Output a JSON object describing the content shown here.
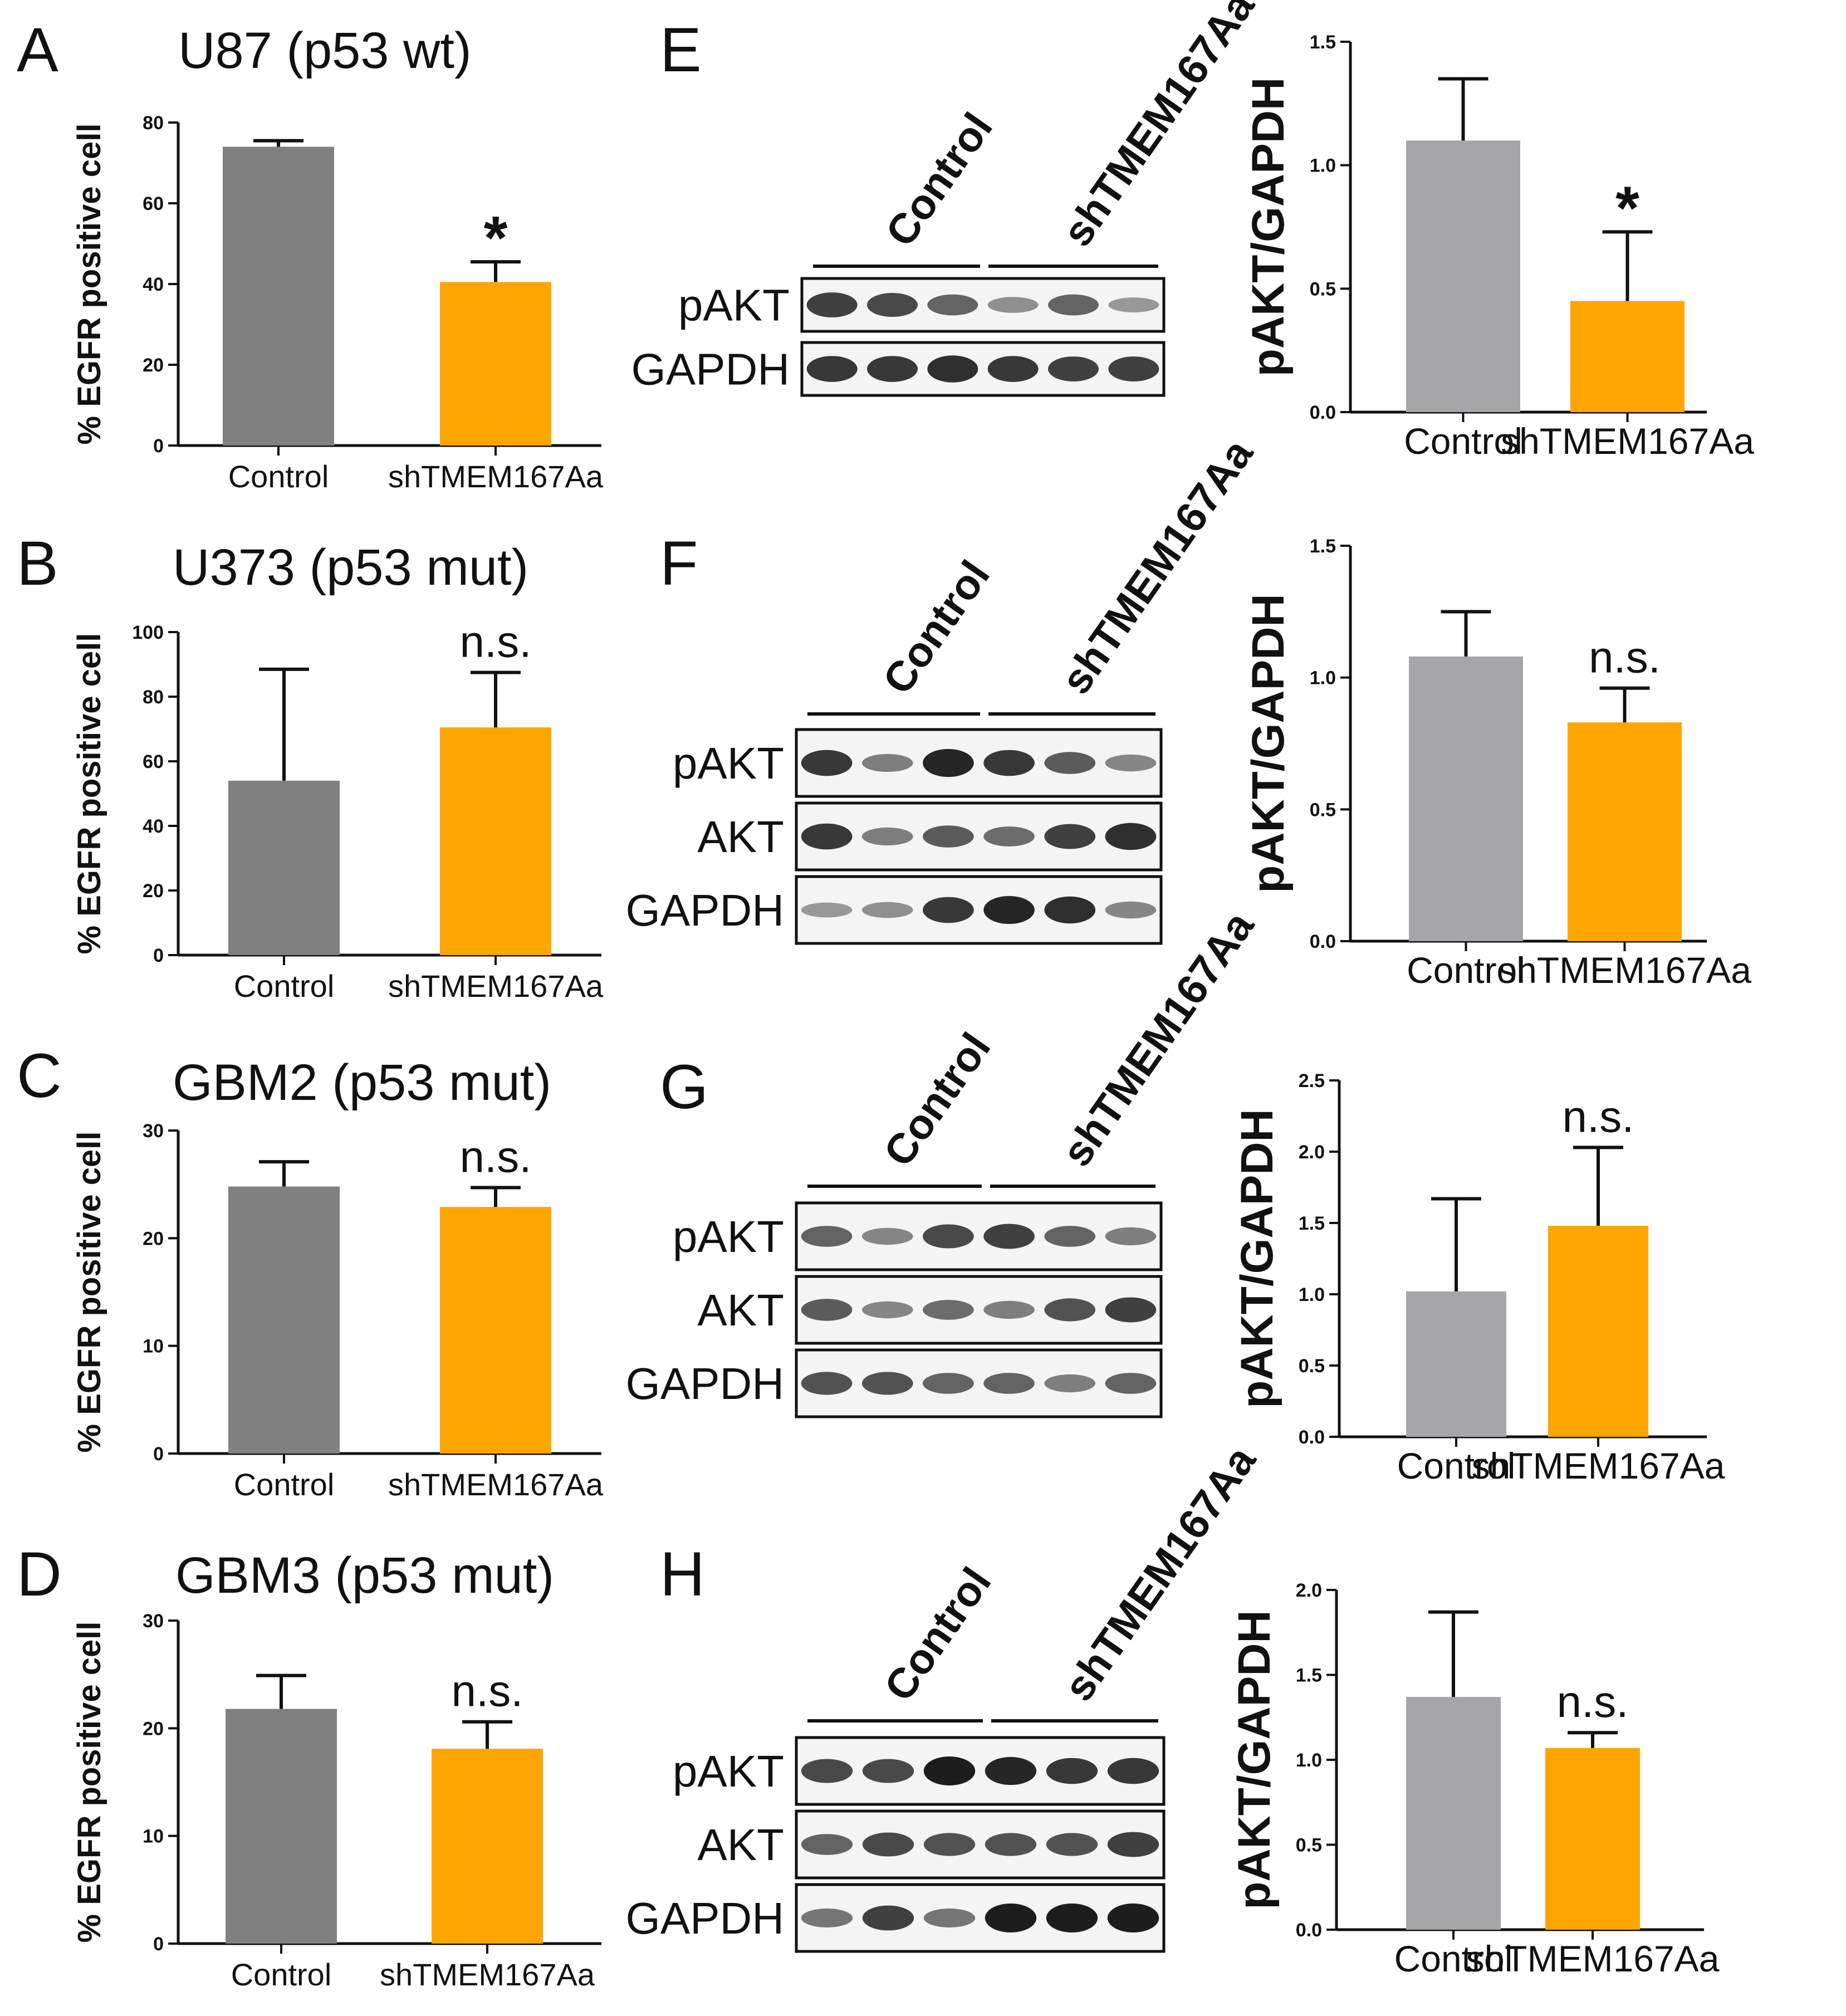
{
  "colors": {
    "control": "#808080",
    "control_light": "#a6a6aa",
    "sh": "#ffa500",
    "axis": "#111111"
  },
  "chart_data": [
    {
      "id": "A",
      "type": "bar",
      "title": "U87 (p53 wt)",
      "ylabel": "% EGFR positive cell",
      "categories": [
        "Control",
        "shTMEM167Aa"
      ],
      "values": [
        74,
        40.5
      ],
      "errors": [
        1.5,
        5
      ],
      "ylim": [
        0,
        80
      ],
      "yticks": [
        0,
        20,
        40,
        60,
        80
      ],
      "significance": "*"
    },
    {
      "id": "B",
      "type": "bar",
      "title": "U373 (p53 mut)",
      "ylabel": "% EGFR positive cell",
      "categories": [
        "Control",
        "shTMEM167Aa"
      ],
      "values": [
        54,
        70.5
      ],
      "errors": [
        34.5,
        17
      ],
      "ylim": [
        0,
        100
      ],
      "yticks": [
        0,
        20,
        40,
        60,
        80,
        100
      ],
      "significance": "n.s."
    },
    {
      "id": "C",
      "type": "bar",
      "title": "GBM2 (p53 mut)",
      "ylabel": "% EGFR positive cell",
      "categories": [
        "Control",
        "shTMEM167Aa"
      ],
      "values": [
        24.8,
        22.9
      ],
      "errors": [
        2.3,
        1.8
      ],
      "ylim": [
        0,
        30
      ],
      "yticks": [
        0,
        10,
        20,
        30
      ],
      "significance": "n.s."
    },
    {
      "id": "D",
      "type": "bar",
      "title": "GBM3 (p53 mut)",
      "ylabel": "% EGFR positive cell",
      "categories": [
        "Control",
        "shTMEM167Aa"
      ],
      "values": [
        21.8,
        18.1
      ],
      "errors": [
        3.1,
        2.5
      ],
      "ylim": [
        0,
        30
      ],
      "yticks": [
        0,
        10,
        20,
        30
      ],
      "significance": "n.s."
    },
    {
      "id": "E-quant",
      "type": "bar",
      "ylabel": "pAKT/GAPDH",
      "categories": [
        "Control",
        "shTMEM167Aa"
      ],
      "values": [
        1.1,
        0.45
      ],
      "errors": [
        0.25,
        0.28
      ],
      "ylim": [
        0,
        1.5
      ],
      "yticks": [
        "0.0",
        "0.5",
        "1.0",
        "1.5"
      ],
      "significance": "*"
    },
    {
      "id": "F-quant",
      "type": "bar",
      "ylabel": "pAKT/GAPDH",
      "categories": [
        "Control",
        "shTMEM167Aa"
      ],
      "values": [
        1.08,
        0.83
      ],
      "errors": [
        0.17,
        0.13
      ],
      "ylim": [
        0,
        1.5
      ],
      "yticks": [
        "0.0",
        "0.5",
        "1.0",
        "1.5"
      ],
      "significance": "n.s."
    },
    {
      "id": "G-quant",
      "type": "bar",
      "ylabel": "pAKT/GAPDH",
      "categories": [
        "Control",
        "shTMEM167Aa"
      ],
      "values": [
        1.02,
        1.48
      ],
      "errors": [
        0.65,
        0.55
      ],
      "ylim": [
        0,
        2.5
      ],
      "yticks": [
        "0.0",
        "0.5",
        "1.0",
        "1.5",
        "2.0",
        "2.5"
      ],
      "significance": "n.s."
    },
    {
      "id": "H-quant",
      "type": "bar",
      "ylabel": "pAKT/GAPDH",
      "categories": [
        "Control",
        "shTMEM167Aa"
      ],
      "values": [
        1.37,
        1.07
      ],
      "errors": [
        0.5,
        0.09
      ],
      "ylim": [
        0,
        2.0
      ],
      "yticks": [
        "0.0",
        "0.5",
        "1.0",
        "1.5",
        "2.0"
      ],
      "significance": "n.s."
    }
  ],
  "blots": [
    {
      "id": "E",
      "lane_groups": [
        "Control",
        "shTMEM167Aa"
      ],
      "rows": [
        {
          "label": "pAKT",
          "intensities": [
            0.8,
            0.75,
            0.6,
            0.35,
            0.6,
            0.3
          ]
        },
        {
          "label": "GAPDH",
          "intensities": [
            0.85,
            0.85,
            0.9,
            0.85,
            0.8,
            0.8
          ]
        }
      ]
    },
    {
      "id": "F",
      "lane_groups": [
        "Control",
        "shTMEM167Aa"
      ],
      "rows": [
        {
          "label": "pAKT",
          "intensities": [
            0.85,
            0.45,
            0.95,
            0.85,
            0.65,
            0.4
          ]
        },
        {
          "label": "AKT",
          "intensities": [
            0.85,
            0.45,
            0.65,
            0.55,
            0.8,
            0.9
          ]
        },
        {
          "label": "GAPDH",
          "intensities": [
            0.3,
            0.35,
            0.85,
            0.95,
            0.9,
            0.4
          ]
        }
      ]
    },
    {
      "id": "G",
      "lane_groups": [
        "Control",
        "shTMEM167Aa"
      ],
      "rows": [
        {
          "label": "pAKT",
          "intensities": [
            0.6,
            0.4,
            0.75,
            0.8,
            0.6,
            0.45
          ]
        },
        {
          "label": "AKT",
          "intensities": [
            0.65,
            0.4,
            0.55,
            0.45,
            0.7,
            0.8
          ]
        },
        {
          "label": "GAPDH",
          "intensities": [
            0.7,
            0.7,
            0.6,
            0.6,
            0.45,
            0.6
          ]
        }
      ]
    },
    {
      "id": "H",
      "lane_groups": [
        "Control",
        "shTMEM167Aa"
      ],
      "rows": [
        {
          "label": "pAKT",
          "intensities": [
            0.75,
            0.75,
            1.0,
            0.95,
            0.85,
            0.85
          ]
        },
        {
          "label": "AKT",
          "intensities": [
            0.6,
            0.75,
            0.7,
            0.7,
            0.7,
            0.8
          ]
        },
        {
          "label": "GAPDH",
          "intensities": [
            0.5,
            0.8,
            0.5,
            1.0,
            1.0,
            1.0
          ]
        }
      ]
    }
  ]
}
